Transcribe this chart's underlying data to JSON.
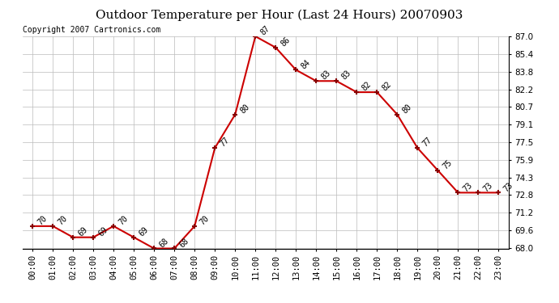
{
  "title": "Outdoor Temperature per Hour (Last 24 Hours) 20070903",
  "copyright_text": "Copyright 2007 Cartronics.com",
  "hours": [
    "00:00",
    "01:00",
    "02:00",
    "03:00",
    "04:00",
    "05:00",
    "06:00",
    "07:00",
    "08:00",
    "09:00",
    "10:00",
    "11:00",
    "12:00",
    "13:00",
    "14:00",
    "15:00",
    "16:00",
    "17:00",
    "18:00",
    "19:00",
    "20:00",
    "21:00",
    "22:00",
    "23:00"
  ],
  "temps": [
    70,
    70,
    69,
    69,
    70,
    69,
    68,
    68,
    70,
    77,
    80,
    87,
    86,
    84,
    83,
    83,
    82,
    82,
    80,
    77,
    75,
    73,
    73,
    73
  ],
  "ylim": [
    68.0,
    87.0
  ],
  "ytick_values": [
    68.0,
    69.6,
    71.2,
    72.8,
    74.3,
    75.9,
    77.5,
    79.1,
    80.7,
    82.2,
    83.8,
    85.4,
    87.0
  ],
  "ytick_labels": [
    "68.0",
    "69.6",
    "71.2",
    "72.8",
    "74.3",
    "75.9",
    "77.5",
    "79.1",
    "80.7",
    "82.2",
    "83.8",
    "85.4",
    "87.0"
  ],
  "line_color": "#cc0000",
  "marker_color": "#880000",
  "bg_color": "#ffffff",
  "grid_color": "#bbbbbb",
  "title_fontsize": 11,
  "tick_fontsize": 7.5,
  "label_fontsize": 7,
  "annot_fontsize": 7
}
